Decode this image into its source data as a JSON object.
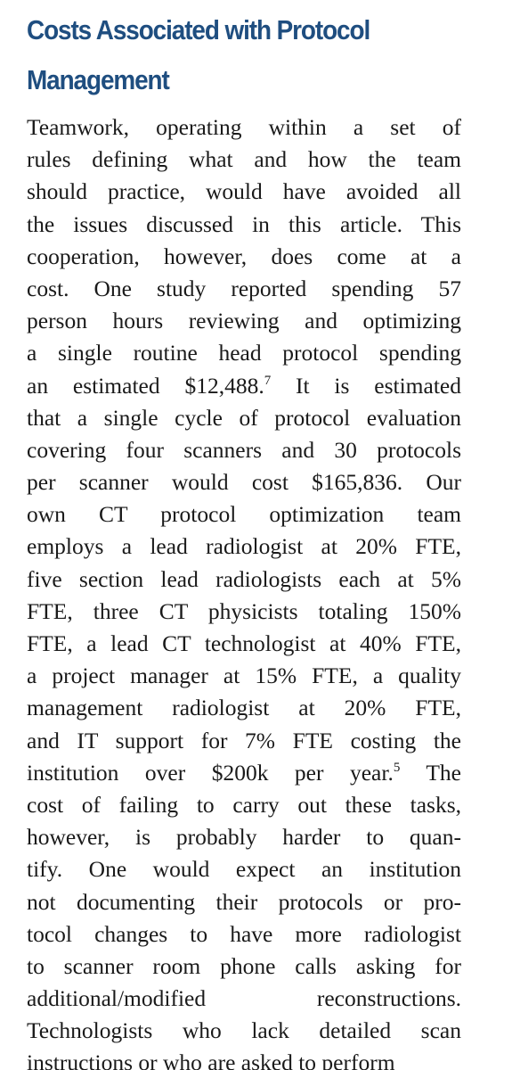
{
  "section": {
    "title_lines": [
      "Costs Associated with Protocol",
      "Management"
    ]
  },
  "paragraph": {
    "lines": [
      "Teamwork, operating within a set of",
      "rules defining what and how the team",
      "should practice, would have avoided all",
      "the issues discussed in this article. This",
      "cooperation, however, does come at a",
      "cost. One study reported spending 57",
      "person hours reviewing and optimizing",
      "a single routine head protocol spending",
      {
        "text": "an estimated $12,488.",
        "ref": "7",
        "after": " It is estimated"
      },
      "that a single cycle of protocol evaluation",
      "covering four scanners and 30 protocols",
      "per scanner would cost $165,836. Our",
      "own CT protocol optimization team",
      "employs a lead radiologist at 20% FTE,",
      "five section lead radiologists each at 5%",
      "FTE, three CT physicists totaling 150%",
      "FTE, a lead CT technologist at 40% FTE,",
      "a project manager at 15% FTE, a quality",
      "management radiologist at 20% FTE,",
      "and IT support for 7% FTE costing the",
      {
        "text": "institution over $200k per year.",
        "ref": "5",
        "after": " The"
      },
      "cost of failing to carry out these tasks,",
      "however, is probably harder to quan-",
      "tify. One would expect an institution",
      "not documenting their protocols or pro-",
      "tocol changes to have more radiologist",
      "to scanner room phone calls asking for",
      "additional/modified reconstructions.",
      "Technologists who lack detailed scan",
      "instructions or who are asked to perform"
    ]
  }
}
